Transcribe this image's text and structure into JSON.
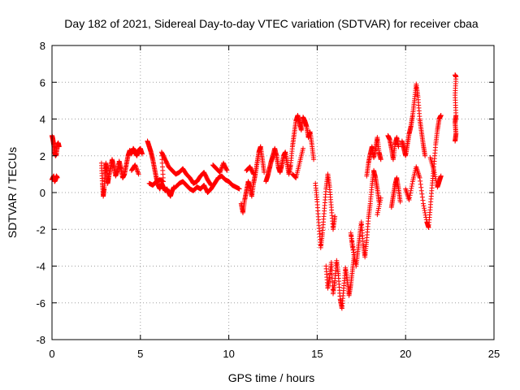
{
  "chart_data": {
    "type": "scatter",
    "title": "Day 182 of 2021, Sidereal Day-to-day VTEC variation (SDTVAR) for receiver cbaa",
    "xlabel": "GPS time / hours",
    "ylabel": "SDTVAR / TECUs",
    "xlim": [
      0,
      25
    ],
    "ylim": [
      -8,
      8
    ],
    "xticks": [
      "0",
      "5",
      "10",
      "15",
      "20",
      "25"
    ],
    "yticks": [
      "-8",
      "-6",
      "-4",
      "-2",
      "0",
      "2",
      "4",
      "6",
      "8"
    ],
    "grid": true,
    "marker": "plus",
    "color": "#ff0000",
    "series": [
      {
        "points": [
          [
            0.0,
            3.1
          ],
          [
            0.05,
            2.9
          ],
          [
            0.1,
            2.6
          ],
          [
            0.15,
            2.2
          ],
          [
            0.2,
            2.0
          ],
          [
            0.25,
            2.1
          ],
          [
            0.3,
            2.6
          ],
          [
            0.35,
            2.7
          ],
          [
            0.4,
            2.5
          ],
          [
            0.0,
            0.7
          ],
          [
            0.05,
            0.8
          ],
          [
            0.1,
            0.9
          ],
          [
            0.15,
            0.6
          ],
          [
            0.2,
            0.7
          ],
          [
            0.25,
            0.9
          ],
          [
            0.3,
            0.8
          ],
          [
            2.8,
            1.6
          ],
          [
            2.85,
            0.5
          ],
          [
            2.9,
            -0.2
          ],
          [
            2.95,
            0.2
          ],
          [
            3.0,
            1.0
          ],
          [
            3.05,
            1.6
          ],
          [
            3.1,
            1.2
          ],
          [
            3.15,
            0.5
          ],
          [
            3.2,
            0.8
          ],
          [
            3.3,
            1.3
          ],
          [
            3.4,
            1.8
          ],
          [
            3.5,
            1.4
          ],
          [
            3.6,
            0.9
          ],
          [
            3.7,
            1.2
          ],
          [
            3.8,
            1.7
          ],
          [
            3.9,
            1.3
          ],
          [
            4.0,
            0.8
          ],
          [
            4.1,
            1.0
          ],
          [
            4.2,
            1.5
          ],
          [
            4.3,
            2.0
          ],
          [
            4.4,
            2.3
          ],
          [
            4.5,
            2.1
          ],
          [
            4.6,
            2.4
          ],
          [
            4.7,
            2.2
          ],
          [
            4.8,
            2.0
          ],
          [
            4.9,
            2.3
          ],
          [
            5.0,
            2.4
          ],
          [
            5.1,
            2.1
          ],
          [
            4.5,
            1.2
          ],
          [
            4.7,
            1.5
          ],
          [
            4.9,
            1.0
          ],
          [
            5.4,
            2.8
          ],
          [
            5.5,
            2.5
          ],
          [
            5.6,
            2.2
          ],
          [
            5.7,
            1.8
          ],
          [
            5.8,
            1.3
          ],
          [
            5.9,
            0.8
          ],
          [
            6.0,
            0.4
          ],
          [
            6.1,
            0.2
          ],
          [
            6.2,
            0.5
          ],
          [
            6.3,
            0.3
          ],
          [
            6.4,
            0.1
          ],
          [
            6.5,
            0.2
          ],
          [
            6.6,
            0.0
          ],
          [
            6.7,
            -0.2
          ],
          [
            6.8,
            0.1
          ],
          [
            6.9,
            0.3
          ],
          [
            5.5,
            0.5
          ],
          [
            5.7,
            0.4
          ],
          [
            5.9,
            0.6
          ],
          [
            6.1,
            0.7
          ],
          [
            6.3,
            0.6
          ],
          [
            6.2,
            2.2
          ],
          [
            6.4,
            1.8
          ],
          [
            6.6,
            1.4
          ],
          [
            6.8,
            1.2
          ],
          [
            7.0,
            1.0
          ],
          [
            7.2,
            1.1
          ],
          [
            7.4,
            1.3
          ],
          [
            7.6,
            1.0
          ],
          [
            7.8,
            0.8
          ],
          [
            8.0,
            0.5
          ],
          [
            8.2,
            0.6
          ],
          [
            8.4,
            0.9
          ],
          [
            8.6,
            1.1
          ],
          [
            8.8,
            0.7
          ],
          [
            9.0,
            0.4
          ],
          [
            7.0,
            0.3
          ],
          [
            7.2,
            0.5
          ],
          [
            7.4,
            0.6
          ],
          [
            7.6,
            0.4
          ],
          [
            7.8,
            0.2
          ],
          [
            8.0,
            0.1
          ],
          [
            8.2,
            0.3
          ],
          [
            8.4,
            0.2
          ],
          [
            8.6,
            0.4
          ],
          [
            8.8,
            0.0
          ],
          [
            9.0,
            0.2
          ],
          [
            9.2,
            0.5
          ],
          [
            9.4,
            0.8
          ],
          [
            9.6,
            0.9
          ],
          [
            9.8,
            0.7
          ],
          [
            10.0,
            0.6
          ],
          [
            10.2,
            0.4
          ],
          [
            10.4,
            0.3
          ],
          [
            10.6,
            0.2
          ],
          [
            9.1,
            1.5
          ],
          [
            9.3,
            1.3
          ],
          [
            9.5,
            1.1
          ],
          [
            9.7,
            1.6
          ],
          [
            9.9,
            1.2
          ],
          [
            10.7,
            -0.6
          ],
          [
            10.8,
            -1.1
          ],
          [
            10.9,
            -0.4
          ],
          [
            11.0,
            0.1
          ],
          [
            11.1,
            0.6
          ],
          [
            11.2,
            0.3
          ],
          [
            11.3,
            -0.2
          ],
          [
            11.4,
            0.5
          ],
          [
            11.5,
            1.0
          ],
          [
            11.6,
            1.6
          ],
          [
            11.7,
            2.2
          ],
          [
            11.8,
            2.5
          ],
          [
            11.9,
            1.8
          ],
          [
            12.0,
            1.1
          ],
          [
            11.0,
            1.2
          ],
          [
            11.2,
            1.4
          ],
          [
            11.4,
            1.0
          ],
          [
            12.1,
            0.6
          ],
          [
            12.2,
            0.9
          ],
          [
            12.3,
            1.3
          ],
          [
            12.4,
            1.7
          ],
          [
            12.5,
            2.0
          ],
          [
            12.6,
            2.4
          ],
          [
            12.7,
            2.0
          ],
          [
            12.8,
            1.4
          ],
          [
            12.9,
            1.1
          ],
          [
            13.0,
            1.5
          ],
          [
            13.1,
            2.0
          ],
          [
            13.2,
            2.2
          ],
          [
            13.3,
            1.6
          ],
          [
            13.4,
            1.0
          ],
          [
            13.5,
            1.5
          ],
          [
            13.6,
            2.5
          ],
          [
            13.7,
            3.2
          ],
          [
            13.8,
            3.9
          ],
          [
            13.9,
            4.2
          ],
          [
            14.0,
            3.8
          ],
          [
            14.1,
            3.4
          ],
          [
            14.2,
            4.1
          ],
          [
            14.3,
            3.9
          ],
          [
            14.4,
            3.6
          ],
          [
            14.5,
            3.0
          ],
          [
            14.6,
            3.3
          ],
          [
            14.7,
            2.6
          ],
          [
            14.8,
            1.8
          ],
          [
            13.6,
            1.0
          ],
          [
            13.8,
            0.8
          ],
          [
            14.0,
            1.6
          ],
          [
            14.2,
            2.4
          ],
          [
            14.9,
            0.5
          ],
          [
            15.0,
            -0.5
          ],
          [
            15.1,
            -1.8
          ],
          [
            15.2,
            -3.0
          ],
          [
            15.3,
            -2.2
          ],
          [
            15.4,
            -1.0
          ],
          [
            15.5,
            0.2
          ],
          [
            15.6,
            1.0
          ],
          [
            15.7,
            0.3
          ],
          [
            15.8,
            -0.8
          ],
          [
            15.9,
            -2.0
          ],
          [
            16.0,
            -1.3
          ],
          [
            15.5,
            -4.0
          ],
          [
            15.6,
            -5.2
          ],
          [
            15.7,
            -4.6
          ],
          [
            15.8,
            -3.8
          ],
          [
            15.9,
            -5.5
          ],
          [
            16.0,
            -4.8
          ],
          [
            16.1,
            -3.7
          ],
          [
            16.2,
            -4.5
          ],
          [
            16.3,
            -5.8
          ],
          [
            16.4,
            -6.3
          ],
          [
            16.5,
            -5.2
          ],
          [
            16.6,
            -4.1
          ],
          [
            16.7,
            -4.8
          ],
          [
            16.8,
            -5.6
          ],
          [
            16.9,
            -5.0
          ],
          [
            17.0,
            -4.2
          ],
          [
            17.1,
            -3.4
          ],
          [
            16.9,
            -2.2
          ],
          [
            17.0,
            -3.0
          ],
          [
            17.2,
            -4.0
          ],
          [
            17.3,
            -3.2
          ],
          [
            17.4,
            -2.4
          ],
          [
            17.5,
            -1.6
          ],
          [
            17.6,
            -2.8
          ],
          [
            17.7,
            -3.5
          ],
          [
            17.8,
            -2.6
          ],
          [
            17.9,
            -1.4
          ],
          [
            18.0,
            -0.6
          ],
          [
            18.1,
            0.4
          ],
          [
            18.2,
            1.2
          ],
          [
            18.3,
            0.8
          ],
          [
            18.4,
            0.2
          ],
          [
            18.5,
            -0.5
          ],
          [
            17.8,
            0.9
          ],
          [
            17.9,
            1.6
          ],
          [
            18.0,
            2.1
          ],
          [
            18.1,
            2.5
          ],
          [
            18.2,
            1.9
          ],
          [
            18.3,
            2.4
          ],
          [
            18.4,
            3.0
          ],
          [
            18.5,
            2.2
          ],
          [
            18.6,
            1.8
          ],
          [
            18.4,
            -1.2
          ],
          [
            18.6,
            -0.3
          ],
          [
            19.0,
            3.1
          ],
          [
            19.1,
            2.9
          ],
          [
            19.2,
            2.4
          ],
          [
            19.3,
            1.8
          ],
          [
            19.4,
            2.6
          ],
          [
            19.5,
            3.0
          ],
          [
            19.6,
            2.5
          ],
          [
            19.2,
            -0.8
          ],
          [
            19.3,
            -0.2
          ],
          [
            19.4,
            0.4
          ],
          [
            19.5,
            0.8
          ],
          [
            19.6,
            0.2
          ],
          [
            19.7,
            -0.5
          ],
          [
            19.8,
            2.8
          ],
          [
            19.9,
            2.4
          ],
          [
            20.0,
            2.0
          ],
          [
            20.1,
            2.6
          ],
          [
            20.2,
            3.2
          ],
          [
            20.3,
            3.6
          ],
          [
            20.4,
            4.2
          ],
          [
            20.5,
            5.0
          ],
          [
            20.6,
            5.9
          ],
          [
            20.7,
            5.2
          ],
          [
            20.8,
            4.0
          ],
          [
            20.9,
            3.3
          ],
          [
            21.0,
            2.6
          ],
          [
            21.1,
            2.0
          ],
          [
            20.0,
            0.2
          ],
          [
            20.2,
            -0.4
          ],
          [
            20.4,
            0.6
          ],
          [
            20.6,
            1.4
          ],
          [
            20.8,
            0.8
          ],
          [
            21.0,
            -0.6
          ],
          [
            21.2,
            -1.6
          ],
          [
            21.3,
            -1.9
          ],
          [
            21.4,
            -0.8
          ],
          [
            21.5,
            0.4
          ],
          [
            21.6,
            1.4
          ],
          [
            21.7,
            2.6
          ],
          [
            21.8,
            3.4
          ],
          [
            21.9,
            4.0
          ],
          [
            22.0,
            4.2
          ],
          [
            21.4,
            1.9
          ],
          [
            21.6,
            1.2
          ],
          [
            21.8,
            0.3
          ],
          [
            21.9,
            0.6
          ],
          [
            22.0,
            0.9
          ],
          [
            22.8,
            6.4
          ],
          [
            22.85,
            6.3
          ],
          [
            22.8,
            5.3
          ],
          [
            22.85,
            4.2
          ],
          [
            22.8,
            3.8
          ],
          [
            22.85,
            3.2
          ],
          [
            22.8,
            2.8
          ]
        ]
      }
    ]
  }
}
